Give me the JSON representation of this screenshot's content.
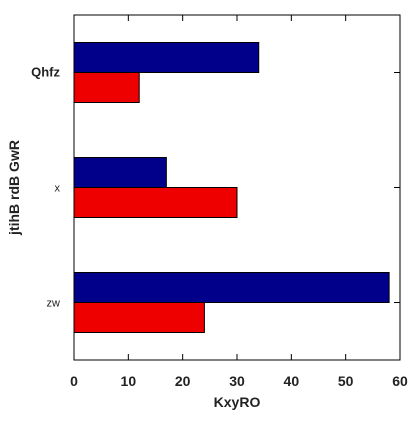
{
  "chart_data": {
    "type": "bar",
    "orientation": "horizontal",
    "categories": [
      "zw",
      "x",
      "Qhfz"
    ],
    "series": [
      {
        "values": [
          24,
          30,
          12
        ],
        "color": "#ee0000"
      },
      {
        "values": [
          58,
          17,
          34
        ],
        "color": "#00008b"
      }
    ],
    "xlabel": "KxyRO",
    "ylabel": "jtihB rdB GwR",
    "title": "",
    "xlim": [
      0,
      60
    ],
    "xticks": [
      0,
      10,
      20,
      30,
      40,
      50,
      60
    ],
    "grid": false,
    "legend": "none"
  }
}
